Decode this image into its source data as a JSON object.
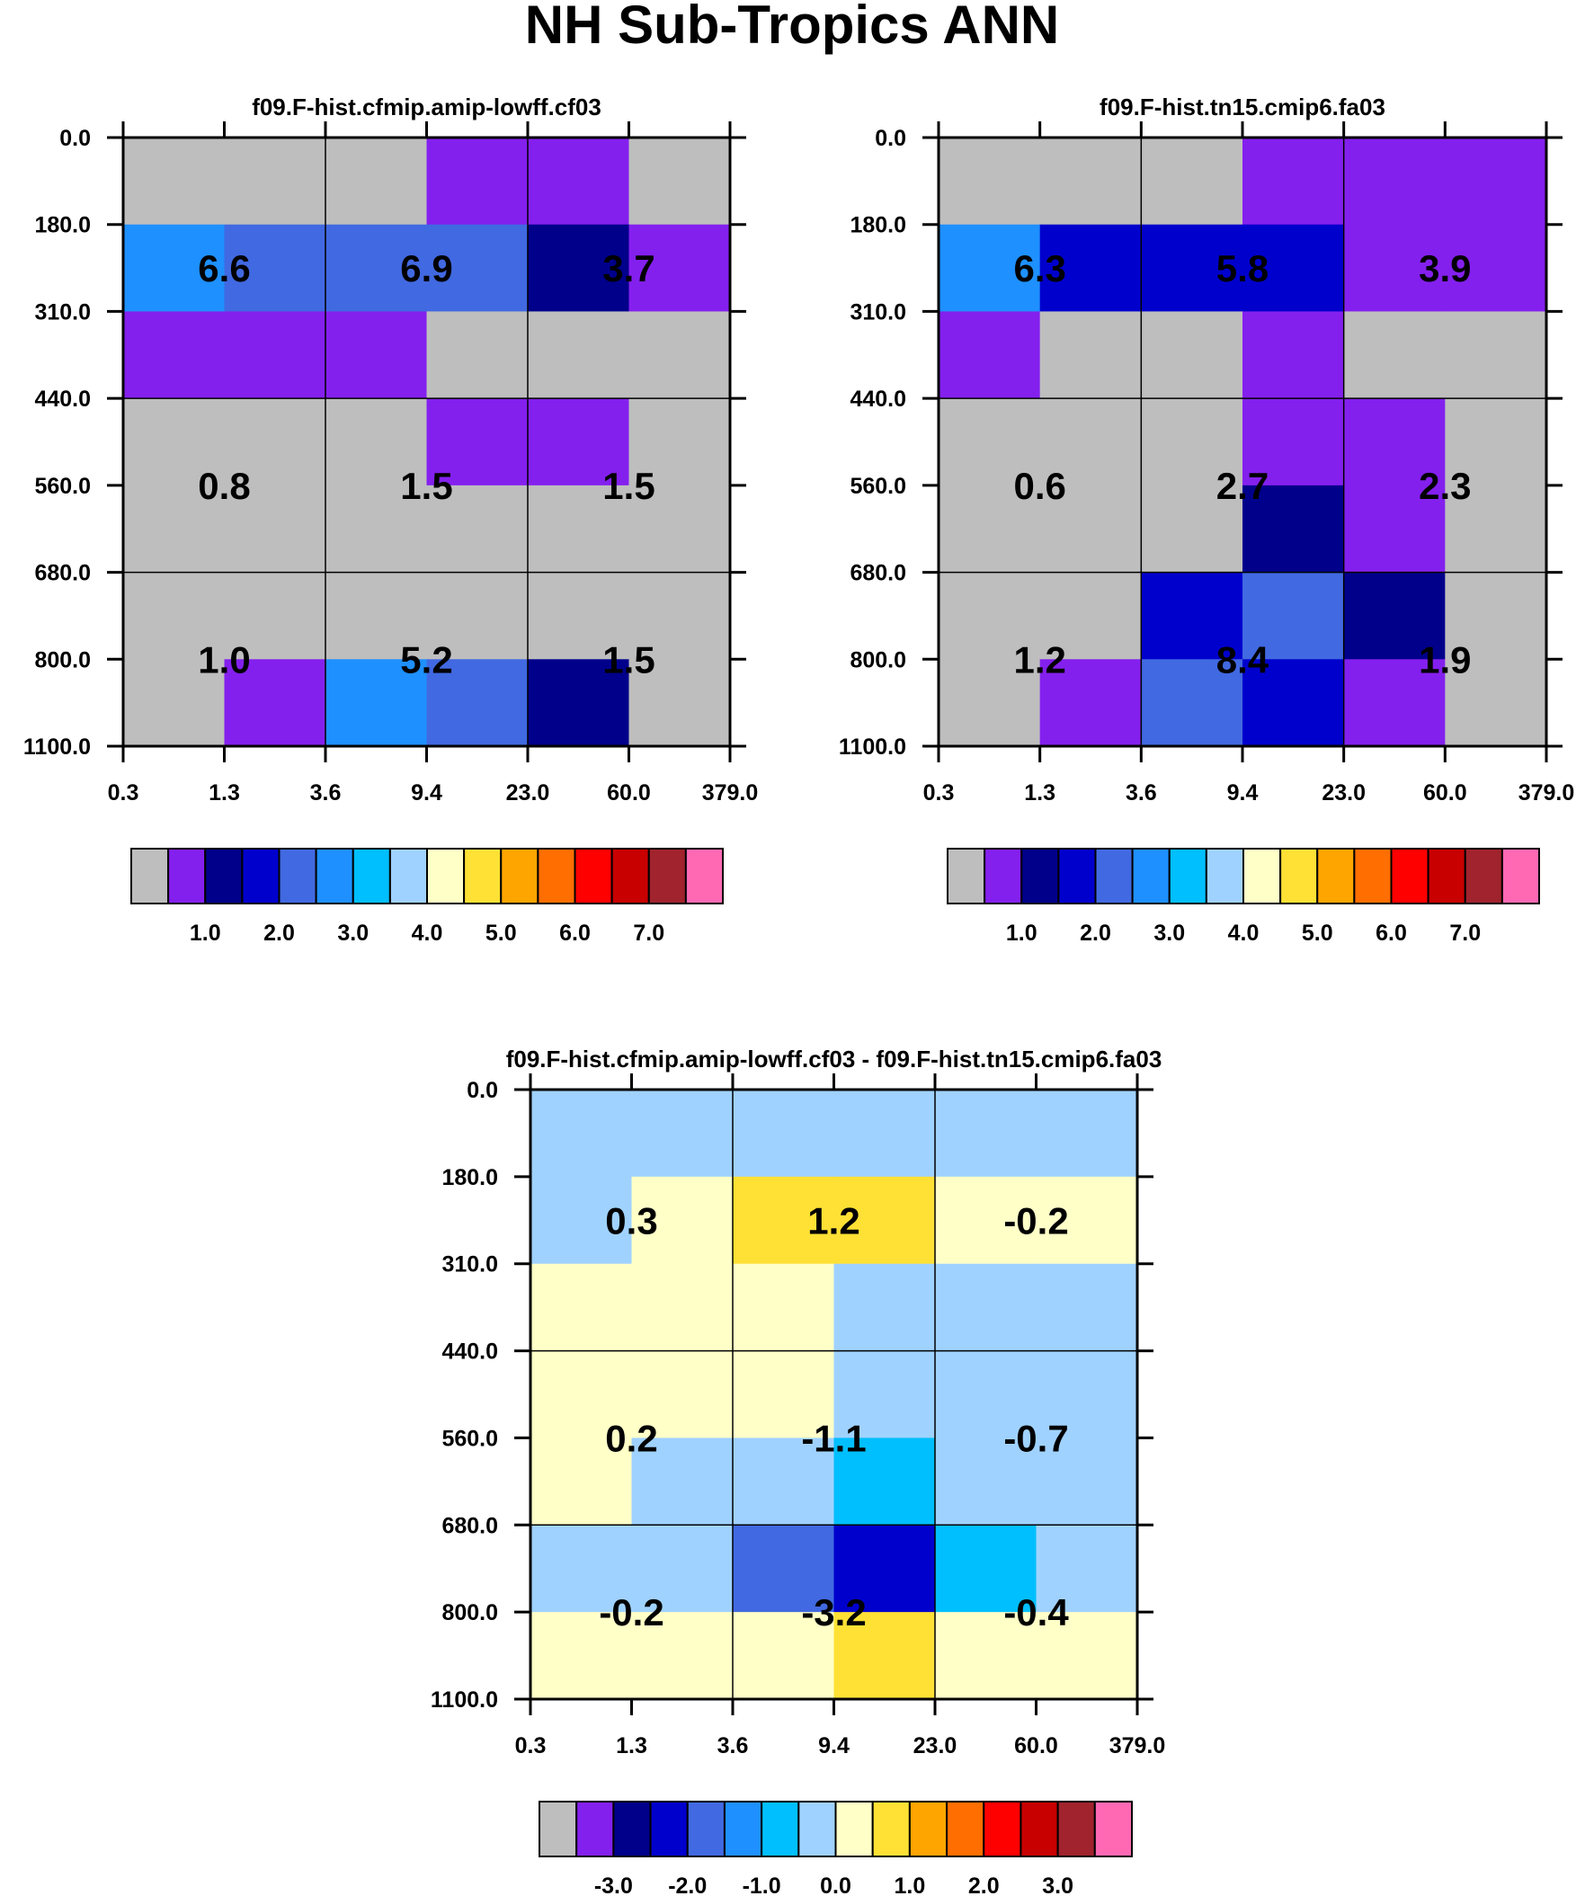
{
  "figure": {
    "title": "NH Sub-Tropics ANN"
  },
  "chart_data": [
    {
      "type": "heatmap",
      "title": "f09.F-hist.cfmip.amip-lowff.cf03",
      "x_ticks": [
        "0.3",
        "1.3",
        "3.6",
        "9.4",
        "23.0",
        "60.0",
        "379.0"
      ],
      "y_ticks": [
        "0.0",
        "180.0",
        "310.0",
        "440.0",
        "560.0",
        "680.0",
        "800.0",
        "1100.0"
      ],
      "cells": [
        [
          "missing",
          "missing",
          "missing",
          "c1",
          "c1",
          "missing"
        ],
        [
          "c6",
          "c5",
          "c5",
          "c5",
          "c3",
          "c1"
        ],
        [
          "c1",
          "c1",
          "c1",
          "missing",
          "missing",
          "missing"
        ],
        [
          "missing",
          "missing",
          "missing",
          "c1",
          "c1",
          "missing"
        ],
        [
          "missing",
          "missing",
          "missing",
          "missing",
          "missing",
          "missing"
        ],
        [
          "missing",
          "missing",
          "missing",
          "missing",
          "missing",
          "missing"
        ],
        [
          "missing",
          "c1",
          "c6",
          "c5",
          "c3",
          "missing"
        ]
      ],
      "block_values": [
        [
          "6.6",
          "6.9",
          "3.7"
        ],
        [
          "0.8",
          "1.5",
          "1.5"
        ],
        [
          "1.0",
          "5.2",
          "1.5"
        ]
      ],
      "colorbar_labels": [
        "1.0",
        "2.0",
        "3.0",
        "4.0",
        "5.0",
        "6.0",
        "7.0"
      ],
      "colorbar_label_start": 1
    },
    {
      "type": "heatmap",
      "title": "f09.F-hist.tn15.cmip6.fa03",
      "x_ticks": [
        "0.3",
        "1.3",
        "3.6",
        "9.4",
        "23.0",
        "60.0",
        "379.0"
      ],
      "y_ticks": [
        "0.0",
        "180.0",
        "310.0",
        "440.0",
        "560.0",
        "680.0",
        "800.0",
        "1100.0"
      ],
      "cells": [
        [
          "missing",
          "missing",
          "missing",
          "c1",
          "c1",
          "c1"
        ],
        [
          "c6",
          "c4",
          "c4",
          "c4",
          "c1",
          "c1"
        ],
        [
          "c1",
          "missing",
          "missing",
          "c1",
          "missing",
          "missing"
        ],
        [
          "missing",
          "missing",
          "missing",
          "c1",
          "c1",
          "missing"
        ],
        [
          "missing",
          "missing",
          "missing",
          "c3",
          "c1",
          "missing"
        ],
        [
          "missing",
          "missing",
          "c4",
          "c5",
          "c3",
          "missing"
        ],
        [
          "missing",
          "c1",
          "c5",
          "c4",
          "c1",
          "missing"
        ]
      ],
      "block_values": [
        [
          "6.3",
          "5.8",
          "3.9"
        ],
        [
          "0.6",
          "2.7",
          "2.3"
        ],
        [
          "1.2",
          "8.4",
          "1.9"
        ]
      ],
      "colorbar_labels": [
        "1.0",
        "2.0",
        "3.0",
        "4.0",
        "5.0",
        "6.0",
        "7.0"
      ],
      "colorbar_label_start": 1
    },
    {
      "type": "heatmap",
      "title": "f09.F-hist.cfmip.amip-lowff.cf03 - f09.F-hist.tn15.cmip6.fa03",
      "x_ticks": [
        "0.3",
        "1.3",
        "3.6",
        "9.4",
        "23.0",
        "60.0",
        "379.0"
      ],
      "y_ticks": [
        "0.0",
        "180.0",
        "310.0",
        "440.0",
        "560.0",
        "680.0",
        "800.0",
        "1100.0"
      ],
      "cells": [
        [
          "c8",
          "c8",
          "c8",
          "c8",
          "c8",
          "c8"
        ],
        [
          "c8",
          "c9",
          "c10",
          "c10",
          "c9",
          "c9"
        ],
        [
          "c9",
          "c9",
          "c9",
          "c8",
          "c8",
          "c8"
        ],
        [
          "c9",
          "c9",
          "c9",
          "c8",
          "c8",
          "c8"
        ],
        [
          "c9",
          "c8",
          "c8",
          "c7",
          "c8",
          "c8"
        ],
        [
          "c8",
          "c8",
          "c5",
          "c4",
          "c7",
          "c8"
        ],
        [
          "c9",
          "c9",
          "c9",
          "c10",
          "c9",
          "c9"
        ]
      ],
      "block_values": [
        [
          "0.3",
          "1.2",
          "-0.2"
        ],
        [
          "0.2",
          "-1.1",
          "-0.7"
        ],
        [
          "-0.2",
          "-3.2",
          "-0.4"
        ]
      ],
      "colorbar_labels": [
        "-3.0",
        "-2.0",
        "-1.0",
        "0.0",
        "1.0",
        "2.0",
        "3.0"
      ],
      "colorbar_label_start": 1
    }
  ],
  "colors": {
    "missing": "#bebebe",
    "c1": "#8420ee",
    "c2": "#00008b",
    "c3": "#00008b",
    "c4": "#0000cd",
    "c5": "#4169e1",
    "c6": "#1e90ff",
    "c7": "#00bfff",
    "c8": "#a0d2ff",
    "c9": "#ffffc8",
    "c10": "#ffe135",
    "c11": "#ffa500",
    "c12": "#ff6e00",
    "c13": "#ff0000",
    "c14": "#c80000",
    "c15": "#a0232d",
    "c16": "#ff69b4",
    "colorbar": [
      "#bebebe",
      "#8420ee",
      "#00008b",
      "#0000cd",
      "#4169e1",
      "#1e90ff",
      "#00bfff",
      "#a0d2ff",
      "#ffffc8",
      "#ffe135",
      "#ffa500",
      "#ff6e00",
      "#ff0000",
      "#c80000",
      "#a0232d",
      "#ff69b4"
    ]
  }
}
